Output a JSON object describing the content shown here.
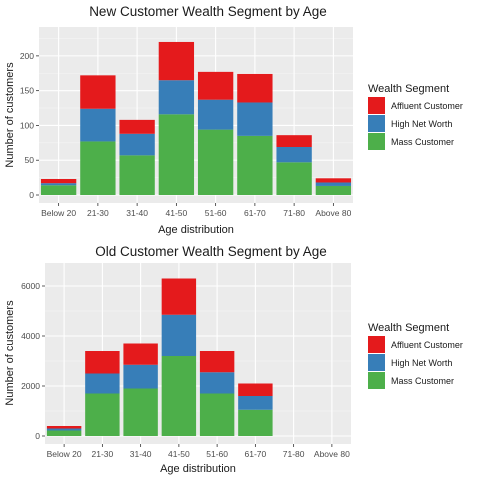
{
  "colors": {
    "affluent": "#e41a1c",
    "high_net_worth": "#377eb8",
    "mass": "#4daf4a",
    "panel": "#ebebeb",
    "grid_major": "#ffffff",
    "grid_minor": "#f5f5f5",
    "text": "#4d4d4d",
    "title": "#1a1a1a"
  },
  "legend": {
    "title": "Wealth Segment",
    "items": [
      {
        "key": "affluent",
        "label": "Affluent Customer"
      },
      {
        "key": "high_net_worth",
        "label": "High Net Worth"
      },
      {
        "key": "mass",
        "label": "Mass Customer"
      }
    ]
  },
  "chart_data": [
    {
      "type": "bar",
      "stacked": true,
      "title": "New Customer Wealth Segment by Age",
      "xlabel": "Age distribution",
      "ylabel": "Number of customers",
      "categories": [
        "Below 20",
        "21-30",
        "31-40",
        "41-50",
        "51-60",
        "61-70",
        "71-80",
        "Above 80"
      ],
      "yticks": [
        0,
        50,
        100,
        150,
        200
      ],
      "ylim": [
        0,
        230
      ],
      "grid": true,
      "legend_position": "right",
      "series": [
        {
          "name": "Mass Customer",
          "key": "mass",
          "values": [
            14,
            77,
            57,
            116,
            94,
            85,
            47,
            13
          ]
        },
        {
          "name": "High Net Worth",
          "key": "high_net_worth",
          "values": [
            3,
            47,
            31,
            49,
            43,
            48,
            22,
            5
          ]
        },
        {
          "name": "Affluent Customer",
          "key": "affluent",
          "values": [
            6,
            48,
            20,
            55,
            40,
            41,
            17,
            6
          ]
        }
      ]
    },
    {
      "type": "bar",
      "stacked": true,
      "title": "Old Customer Wealth Segment by Age",
      "xlabel": "Age distribution",
      "ylabel": "Number of customers",
      "categories": [
        "Below 20",
        "21-30",
        "31-40",
        "41-50",
        "51-60",
        "61-70",
        "71-80",
        "Above 80"
      ],
      "yticks": [
        0,
        2000,
        4000,
        6000
      ],
      "ylim": [
        0,
        6600
      ],
      "grid": true,
      "legend_position": "right",
      "series": [
        {
          "name": "Mass Customer",
          "key": "mass",
          "values": [
            220,
            1700,
            1900,
            3200,
            1700,
            1050,
            0,
            0
          ]
        },
        {
          "name": "High Net Worth",
          "key": "high_net_worth",
          "values": [
            80,
            800,
            950,
            1650,
            850,
            550,
            0,
            0
          ]
        },
        {
          "name": "Affluent Customer",
          "key": "affluent",
          "values": [
            100,
            900,
            850,
            1450,
            850,
            500,
            0,
            0
          ]
        }
      ]
    }
  ]
}
